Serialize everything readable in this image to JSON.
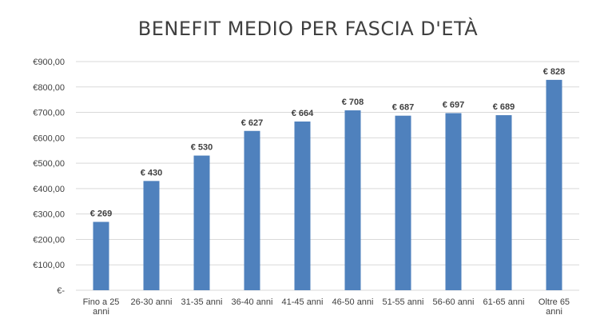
{
  "chart_data": {
    "type": "bar",
    "title": "BENEFIT MEDIO PER FASCIA D'ETÀ",
    "xlabel": "",
    "ylabel": "",
    "categories": [
      [
        "Fino a 25",
        "anni"
      ],
      [
        "26-30 anni"
      ],
      [
        "31-35 anni"
      ],
      [
        "36-40 anni"
      ],
      [
        "41-45 anni"
      ],
      [
        "46-50 anni"
      ],
      [
        "51-55 anni"
      ],
      [
        "56-60 anni"
      ],
      [
        "61-65 anni"
      ],
      [
        "Oltre 65",
        "anni"
      ]
    ],
    "values": [
      269,
      430,
      530,
      627,
      664,
      708,
      687,
      697,
      689,
      828
    ],
    "data_labels": [
      "€ 269",
      "€ 430",
      "€ 530",
      "€ 627",
      "€ 664",
      "€ 708",
      "€ 687",
      "€ 697",
      "€ 689",
      "€ 828"
    ],
    "ylim": [
      0,
      900
    ],
    "y_ticks": [
      0,
      100,
      200,
      300,
      400,
      500,
      600,
      700,
      800,
      900
    ],
    "y_tick_labels": [
      "€-",
      "€100,00",
      "€200,00",
      "€300,00",
      "€400,00",
      "€500,00",
      "€600,00",
      "€700,00",
      "€800,00",
      "€900,00"
    ],
    "grid": true,
    "legend": "none",
    "colors": {
      "bar": "#4f81bd",
      "grid": "#d9d9d9",
      "text": "#404040",
      "title": "#3f3f3f"
    }
  }
}
